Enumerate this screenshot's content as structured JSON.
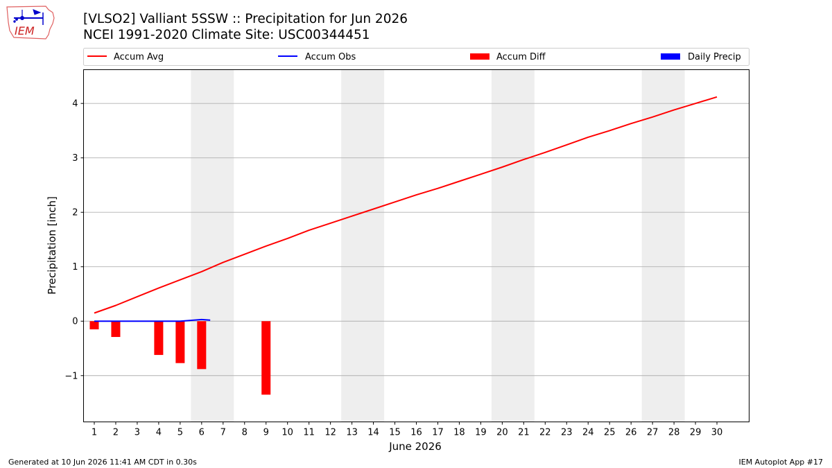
{
  "header": {
    "title_line1": "[VLSO2] Valliant 5SSW :: Precipitation for Jun 2026",
    "title_line2": "NCEI 1991-2020 Climate Site: USC00344451"
  },
  "logo": {
    "text": "IEM"
  },
  "footer": {
    "generated": "Generated at 10 Jun 2026 11:41 AM CDT in 0.30s",
    "app": "IEM Autoplot App #17"
  },
  "colors": {
    "accum_avg": "#ff0000",
    "accum_obs": "#0000ff",
    "accum_diff": "#ff0000",
    "daily_precip": "#0000ff",
    "weekend_shade": "#eeeeee",
    "grid": "#b0b0b0"
  },
  "chart_data": {
    "type": "line",
    "title": "[VLSO2] Valliant 5SSW :: Precipitation for Jun 2026",
    "subtitle": "NCEI 1991-2020 Climate Site: USC00344451",
    "xlabel": "June 2026",
    "ylabel": "Precipitation [inch]",
    "xlim": [
      0.5,
      31.5
    ],
    "ylim": [
      -1.85,
      4.62
    ],
    "x_ticks": [
      1,
      2,
      3,
      4,
      5,
      6,
      7,
      8,
      9,
      10,
      11,
      12,
      13,
      14,
      15,
      16,
      17,
      18,
      19,
      20,
      21,
      22,
      23,
      24,
      25,
      26,
      27,
      28,
      29,
      30
    ],
    "y_ticks": [
      -1,
      0,
      1,
      2,
      3,
      4
    ],
    "y_tick_labels": [
      "−1",
      "0",
      "1",
      "2",
      "3",
      "4"
    ],
    "grid": "horizontal",
    "legend_position": "top",
    "weekend_shading": [
      [
        6,
        7
      ],
      [
        13,
        14
      ],
      [
        20,
        21
      ],
      [
        27,
        28
      ]
    ],
    "series": [
      {
        "name": "Accum Avg",
        "kind": "line",
        "x": [
          1,
          2,
          3,
          4,
          5,
          6,
          7,
          8,
          9,
          10,
          11,
          12,
          13,
          14,
          15,
          16,
          17,
          18,
          19,
          20,
          21,
          22,
          23,
          24,
          25,
          26,
          27,
          28,
          29,
          30
        ],
        "values": [
          0.15,
          0.29,
          0.45,
          0.61,
          0.76,
          0.91,
          1.08,
          1.23,
          1.38,
          1.52,
          1.67,
          1.8,
          1.93,
          2.06,
          2.19,
          2.32,
          2.44,
          2.57,
          2.7,
          2.83,
          2.97,
          3.1,
          3.24,
          3.38,
          3.5,
          3.63,
          3.75,
          3.88,
          4.0,
          4.12
        ]
      },
      {
        "name": "Accum Obs",
        "kind": "line",
        "x": [
          1,
          2,
          4,
          5,
          6,
          6.4
        ],
        "values": [
          0.0,
          0.0,
          0.0,
          0.0,
          0.03,
          0.02
        ]
      },
      {
        "name": "Accum Diff",
        "kind": "bar",
        "x": [
          1,
          2,
          4,
          5,
          6,
          9
        ],
        "values": [
          -0.15,
          -0.29,
          -0.62,
          -0.77,
          -0.88,
          -1.35
        ]
      },
      {
        "name": "Daily Precip",
        "kind": "bar",
        "x": [],
        "values": []
      }
    ]
  }
}
